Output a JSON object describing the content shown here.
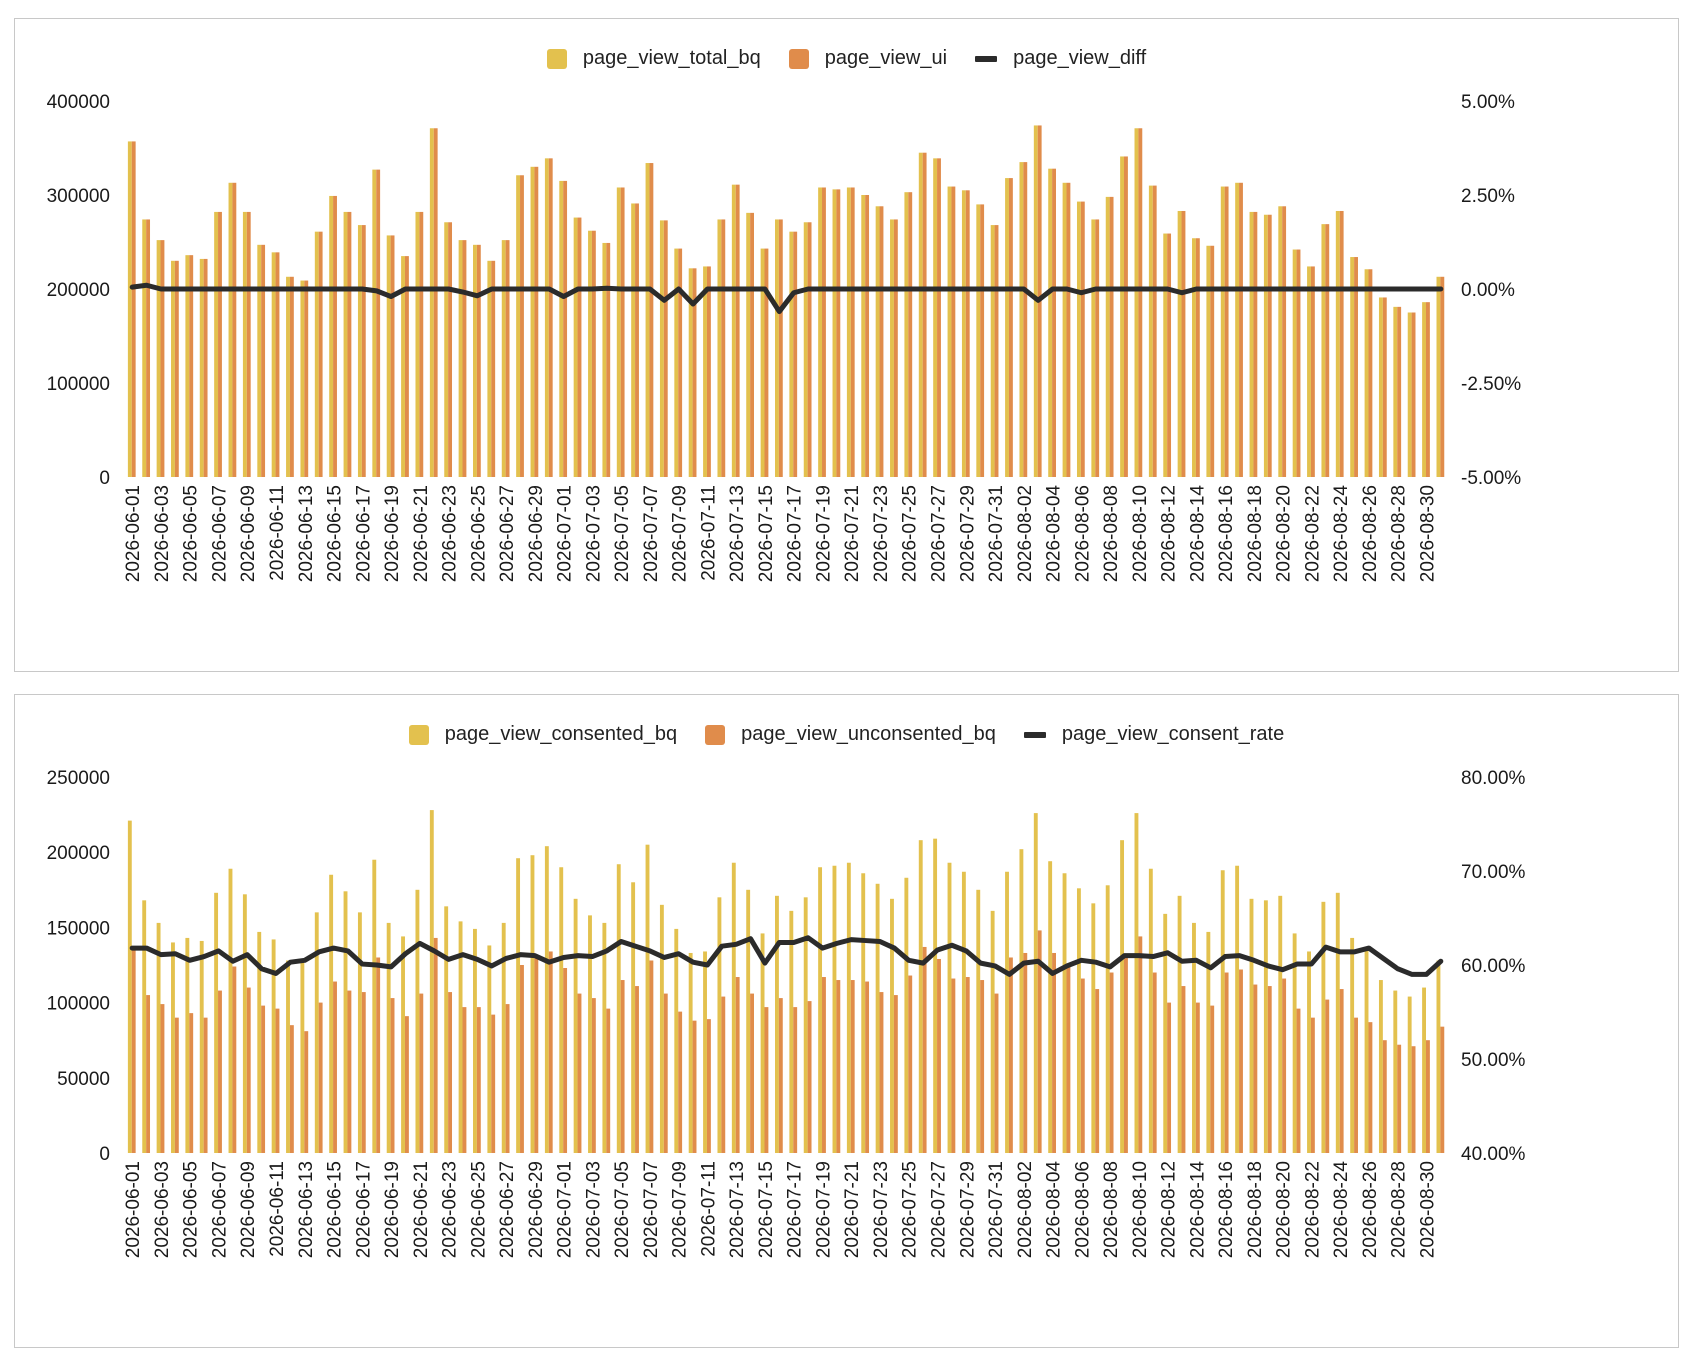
{
  "colors": {
    "bar_a": "#e3c14e",
    "bar_b": "#e08c4b",
    "line": "#2b2b2b"
  },
  "chart_data": [
    {
      "type": "bar",
      "legend": [
        "page_view_total_bq",
        "page_view_ui",
        "page_view_diff"
      ],
      "y_ticks": [
        "0",
        "100000",
        "200000",
        "300000",
        "400000"
      ],
      "y2_ticks": [
        "-5.00%",
        "-2.50%",
        "0.00%",
        "2.50%",
        "5.00%"
      ],
      "ylim": [
        0,
        400000
      ],
      "y2lim": [
        -5,
        5
      ],
      "x": [
        "2026-06-01",
        "2026-06-02",
        "2026-06-03",
        "2026-06-04",
        "2026-06-05",
        "2026-06-06",
        "2026-06-07",
        "2026-06-08",
        "2026-06-09",
        "2026-06-10",
        "2026-06-11",
        "2026-06-12",
        "2026-06-13",
        "2026-06-14",
        "2026-06-15",
        "2026-06-16",
        "2026-06-17",
        "2026-06-18",
        "2026-06-19",
        "2026-06-20",
        "2026-06-21",
        "2026-06-22",
        "2026-06-23",
        "2026-06-24",
        "2026-06-25",
        "2026-06-26",
        "2026-06-27",
        "2026-06-28",
        "2026-06-29",
        "2026-06-30",
        "2026-07-01",
        "2026-07-02",
        "2026-07-03",
        "2026-07-04",
        "2026-07-05",
        "2026-07-06",
        "2026-07-07",
        "2026-07-08",
        "2026-07-09",
        "2026-07-10",
        "2026-07-11",
        "2026-07-12",
        "2026-07-13",
        "2026-07-14",
        "2026-07-15",
        "2026-07-16",
        "2026-07-17",
        "2026-07-18",
        "2026-07-19",
        "2026-07-20",
        "2026-07-21",
        "2026-07-22",
        "2026-07-23",
        "2026-07-24",
        "2026-07-25",
        "2026-07-26",
        "2026-07-27",
        "2026-07-28",
        "2026-07-29",
        "2026-07-30",
        "2026-07-31",
        "2026-08-01",
        "2026-08-02",
        "2026-08-03",
        "2026-08-04",
        "2026-08-05",
        "2026-08-06",
        "2026-08-07",
        "2026-08-08",
        "2026-08-09",
        "2026-08-10",
        "2026-08-11",
        "2026-08-12",
        "2026-08-13",
        "2026-08-14",
        "2026-08-15",
        "2026-08-16",
        "2026-08-17",
        "2026-08-18",
        "2026-08-19",
        "2026-08-20",
        "2026-08-21",
        "2026-08-22",
        "2026-08-23",
        "2026-08-24",
        "2026-08-25",
        "2026-08-26",
        "2026-08-27",
        "2026-08-28",
        "2026-08-29",
        "2026-08-30",
        "2026-08-31"
      ],
      "x_tick_labels": [
        "2026-06-01",
        "2026-06-03",
        "2026-06-05",
        "2026-06-07",
        "2026-06-09",
        "2026-06-11",
        "2026-06-13",
        "2026-06-15",
        "2026-06-17",
        "2026-06-19",
        "2026-06-21",
        "2026-06-23",
        "2026-06-25",
        "2026-06-27",
        "2026-06-29",
        "2026-07-01",
        "2026-07-03",
        "2026-07-05",
        "2026-07-07",
        "2026-07-09",
        "2026-07-11",
        "2026-07-13",
        "2026-07-15",
        "2026-07-17",
        "2026-07-19",
        "2026-07-21",
        "2026-07-23",
        "2026-07-25",
        "2026-07-27",
        "2026-07-29",
        "2026-07-31",
        "2026-08-02",
        "2026-08-04",
        "2026-08-06",
        "2026-08-08",
        "2026-08-10",
        "2026-08-12",
        "2026-08-14",
        "2026-08-16",
        "2026-08-18",
        "2026-08-20",
        "2026-08-22",
        "2026-08-24",
        "2026-08-26",
        "2026-08-28",
        "2026-08-30"
      ],
      "series": [
        {
          "name": "page_view_total_bq",
          "kind": "bar",
          "axis": "left",
          "values": [
            357000,
            274000,
            252000,
            230000,
            236000,
            232000,
            282000,
            313000,
            282000,
            247000,
            239000,
            213000,
            209000,
            261000,
            299000,
            282000,
            268000,
            327000,
            257000,
            235000,
            282000,
            371000,
            271000,
            252000,
            247000,
            230000,
            252000,
            321000,
            330000,
            339000,
            315000,
            276000,
            262000,
            249000,
            308000,
            291000,
            334000,
            273000,
            243000,
            222000,
            224000,
            274000,
            311000,
            281000,
            243000,
            274000,
            261000,
            271000,
            308000,
            306000,
            308000,
            300000,
            288000,
            274000,
            303000,
            345000,
            339000,
            309000,
            305000,
            290000,
            268000,
            318000,
            335000,
            374000,
            328000,
            313000,
            293000,
            274000,
            298000,
            341000,
            371000,
            310000,
            259000,
            283000,
            254000,
            246000,
            309000,
            313000,
            282000,
            279000,
            288000,
            242000,
            224000,
            269000,
            283000,
            234000,
            221000,
            191000,
            181000,
            175000,
            186000,
            213000
          ]
        },
        {
          "name": "page_view_ui",
          "kind": "bar",
          "axis": "left",
          "values": [
            357000,
            274000,
            252000,
            230000,
            236000,
            232000,
            282000,
            313000,
            282000,
            247000,
            239000,
            213000,
            209000,
            261000,
            299000,
            282000,
            268000,
            327000,
            257000,
            235000,
            282000,
            371000,
            271000,
            252000,
            247000,
            230000,
            252000,
            321000,
            330000,
            339000,
            315000,
            276000,
            262000,
            249000,
            308000,
            291000,
            334000,
            273000,
            243000,
            222000,
            224000,
            274000,
            311000,
            281000,
            243000,
            274000,
            261000,
            271000,
            308000,
            306000,
            308000,
            300000,
            288000,
            274000,
            303000,
            345000,
            339000,
            309000,
            305000,
            290000,
            268000,
            318000,
            335000,
            374000,
            328000,
            313000,
            293000,
            274000,
            298000,
            341000,
            371000,
            310000,
            259000,
            283000,
            254000,
            246000,
            309000,
            313000,
            282000,
            279000,
            288000,
            242000,
            224000,
            269000,
            283000,
            234000,
            221000,
            191000,
            181000,
            175000,
            186000,
            213000
          ]
        },
        {
          "name": "page_view_diff",
          "kind": "line",
          "axis": "right",
          "values": [
            0.05,
            0.1,
            0,
            0,
            0,
            0,
            0,
            0,
            0,
            0,
            0,
            0,
            0,
            0,
            0,
            0,
            0,
            -0.05,
            -0.2,
            0,
            0,
            0,
            0,
            -0.08,
            -0.18,
            0,
            0,
            0,
            0,
            0,
            -0.2,
            0,
            0,
            0.02,
            0,
            0,
            0,
            -0.3,
            0,
            -0.4,
            0,
            0,
            0,
            0,
            0,
            -0.6,
            -0.1,
            0,
            0,
            0,
            0,
            0,
            0,
            0,
            0,
            0,
            0,
            0,
            0,
            0,
            0,
            0,
            0,
            -0.3,
            0,
            0,
            -0.1,
            0,
            0,
            0,
            0,
            0,
            0,
            -0.1,
            0,
            0,
            0,
            0,
            0,
            0,
            0,
            0,
            0,
            0,
            0,
            0,
            0,
            0,
            0,
            0,
            0,
            0
          ]
        }
      ]
    },
    {
      "type": "bar",
      "legend": [
        "page_view_consented_bq",
        "page_view_unconsented_bq",
        "page_view_consent_rate"
      ],
      "y_ticks": [
        "0",
        "50000",
        "100000",
        "150000",
        "200000",
        "250000"
      ],
      "y2_ticks": [
        "40.00%",
        "50.00%",
        "60.00%",
        "70.00%",
        "80.00%"
      ],
      "ylim": [
        0,
        250000
      ],
      "y2lim": [
        40,
        80
      ],
      "x_tick_labels": [
        "2026-06-01",
        "2026-06-03",
        "2026-06-05",
        "2026-06-07",
        "2026-06-09",
        "2026-06-11",
        "2026-06-13",
        "2026-06-15",
        "2026-06-17",
        "2026-06-19",
        "2026-06-21",
        "2026-06-23",
        "2026-06-25",
        "2026-06-27",
        "2026-06-29",
        "2026-07-01",
        "2026-07-03",
        "2026-07-05",
        "2026-07-07",
        "2026-07-09",
        "2026-07-11",
        "2026-07-13",
        "2026-07-15",
        "2026-07-17",
        "2026-07-19",
        "2026-07-21",
        "2026-07-23",
        "2026-07-25",
        "2026-07-27",
        "2026-07-29",
        "2026-07-31",
        "2026-08-02",
        "2026-08-04",
        "2026-08-06",
        "2026-08-08",
        "2026-08-10",
        "2026-08-12",
        "2026-08-14",
        "2026-08-16",
        "2026-08-18",
        "2026-08-20",
        "2026-08-22",
        "2026-08-24",
        "2026-08-26",
        "2026-08-28",
        "2026-08-30"
      ],
      "series": [
        {
          "name": "page_view_consented_bq",
          "kind": "bar",
          "axis": "left",
          "values": [
            221000,
            168000,
            153000,
            140000,
            143000,
            141000,
            173000,
            189000,
            172000,
            147000,
            142000,
            128000,
            128000,
            160000,
            185000,
            174000,
            160000,
            195000,
            153000,
            144000,
            175000,
            228000,
            164000,
            154000,
            149000,
            138000,
            153000,
            196000,
            198000,
            204000,
            190000,
            169000,
            158000,
            153000,
            192000,
            180000,
            205000,
            165000,
            149000,
            133000,
            134000,
            170000,
            193000,
            175000,
            146000,
            171000,
            161000,
            170000,
            190000,
            191000,
            193000,
            186000,
            179000,
            169000,
            183000,
            208000,
            209000,
            193000,
            187000,
            175000,
            161000,
            187000,
            202000,
            226000,
            194000,
            186000,
            176000,
            166000,
            178000,
            208000,
            226000,
            189000,
            159000,
            171000,
            153000,
            147000,
            188000,
            191000,
            169000,
            168000,
            171000,
            146000,
            134000,
            167000,
            173000,
            143000,
            135000,
            115000,
            108000,
            104000,
            110000,
            128000
          ]
        },
        {
          "name": "page_view_unconsented_bq",
          "kind": "bar",
          "axis": "left",
          "values": [
            136000,
            105000,
            99000,
            90000,
            93000,
            90000,
            108000,
            124000,
            110000,
            98000,
            96000,
            85000,
            81000,
            100000,
            114000,
            108000,
            107000,
            130000,
            103000,
            91000,
            106000,
            143000,
            107000,
            97000,
            97000,
            92000,
            99000,
            125000,
            132000,
            134000,
            123000,
            106000,
            103000,
            96000,
            115000,
            111000,
            128000,
            106000,
            94000,
            88000,
            89000,
            104000,
            117000,
            106000,
            97000,
            103000,
            97000,
            101000,
            117000,
            115000,
            115000,
            114000,
            107000,
            105000,
            118000,
            137000,
            129000,
            116000,
            117000,
            115000,
            106000,
            130000,
            133000,
            148000,
            133000,
            126000,
            116000,
            109000,
            120000,
            132000,
            144000,
            120000,
            100000,
            111000,
            100000,
            98000,
            120000,
            122000,
            112000,
            111000,
            116000,
            96000,
            90000,
            102000,
            109000,
            90000,
            87000,
            75000,
            72000,
            71000,
            75000,
            84000
          ]
        },
        {
          "name": "page_view_consent_rate",
          "kind": "line",
          "axis": "right",
          "values": [
            61.8,
            61.8,
            61.1,
            61.2,
            60.5,
            60.9,
            61.5,
            60.4,
            61.1,
            59.6,
            59.1,
            60.3,
            60.5,
            61.4,
            61.8,
            61.5,
            60.1,
            60.0,
            59.8,
            61.2,
            62.3,
            61.5,
            60.6,
            61.1,
            60.6,
            59.9,
            60.7,
            61.1,
            61.0,
            60.3,
            60.8,
            61.0,
            60.9,
            61.5,
            62.5,
            62.0,
            61.5,
            60.8,
            61.2,
            60.3,
            60.0,
            62.0,
            62.2,
            62.8,
            60.2,
            62.4,
            62.4,
            62.9,
            61.8,
            62.3,
            62.7,
            62.6,
            62.5,
            61.8,
            60.5,
            60.2,
            61.6,
            62.1,
            61.5,
            60.2,
            59.9,
            59.0,
            60.2,
            60.4,
            59.1,
            59.9,
            60.5,
            60.3,
            59.8,
            61.0,
            61.0,
            60.9,
            61.3,
            60.4,
            60.5,
            59.7,
            60.9,
            61.0,
            60.5,
            59.9,
            59.5,
            60.1,
            60.1,
            61.9,
            61.4,
            61.4,
            61.8,
            60.7,
            59.6,
            59.0,
            59.0,
            60.4
          ]
        }
      ]
    }
  ]
}
